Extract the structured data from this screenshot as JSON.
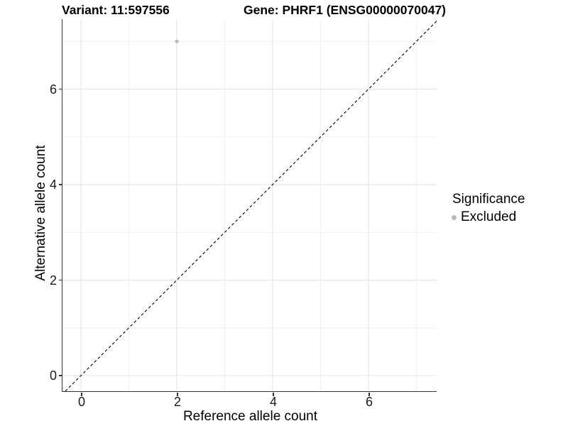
{
  "header": {
    "variant_title": "Variant: 11:597556",
    "gene_title": "Gene: PHRF1 (ENSG00000070047)"
  },
  "legend": {
    "title": "Significance",
    "items": [
      {
        "label": "Excluded",
        "color": "#b9b9b9"
      }
    ]
  },
  "chart_data": {
    "type": "scatter",
    "title": "Variant: 11:597556   Gene: PHRF1 (ENSG00000070047)",
    "xlabel": "Reference allele count",
    "ylabel": "Alternative allele count",
    "xlim": [
      -0.385,
      7.423
    ],
    "ylim": [
      -0.327,
      7.465
    ],
    "x_major_ticks": [
      0,
      2,
      4,
      6
    ],
    "x_minor_ticks": [
      1,
      3,
      5,
      7
    ],
    "y_major_ticks": [
      0,
      2,
      4,
      6
    ],
    "y_minor_ticks": [
      1,
      3,
      5,
      7
    ],
    "grid": "on",
    "legend_position": "right",
    "series": [
      {
        "name": "Excluded",
        "color": "#b9b9b9",
        "point_radius": 2.6,
        "points": [
          {
            "x": 2,
            "y": 7
          }
        ]
      }
    ],
    "reference_line": {
      "kind": "identity",
      "slope": 1,
      "intercept": 0,
      "style": "dashed",
      "color": "#000000"
    }
  },
  "colors": {
    "background": "#ffffff",
    "grid_major": "#e4e4e4",
    "grid_minor": "#efefef",
    "axis_line": "#333333",
    "tick_mark": "#333333",
    "tick_text": "#1a1a1a",
    "text": "#000000"
  }
}
